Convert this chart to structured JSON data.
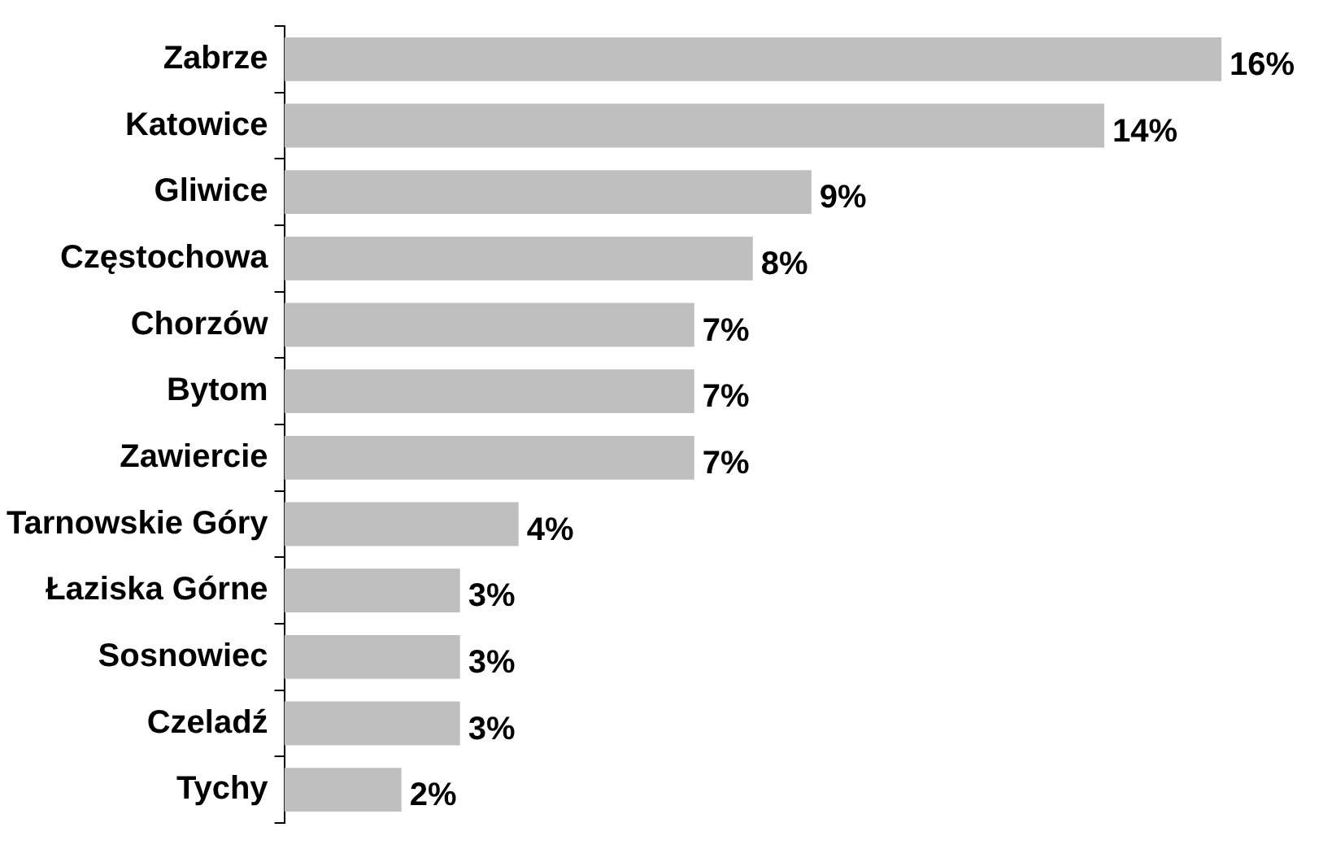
{
  "chart_data": {
    "type": "bar",
    "orientation": "horizontal",
    "categories": [
      "Zabrze",
      "Katowice",
      "Gliwice",
      "Częstochowa",
      "Chorzów",
      "Bytom",
      "Zawiercie",
      "Tarnowskie Góry",
      "Łaziska Górne",
      "Sosnowiec",
      "Czeladź",
      "Tychy"
    ],
    "values": [
      16,
      14,
      9,
      8,
      7,
      7,
      7,
      4,
      3,
      3,
      3,
      2
    ],
    "value_labels": [
      "16%",
      "14%",
      "9%",
      "8%",
      "7%",
      "7%",
      "7%",
      "4%",
      "3%",
      "3%",
      "3%",
      "2%"
    ],
    "color": "#bfbfbf"
  }
}
